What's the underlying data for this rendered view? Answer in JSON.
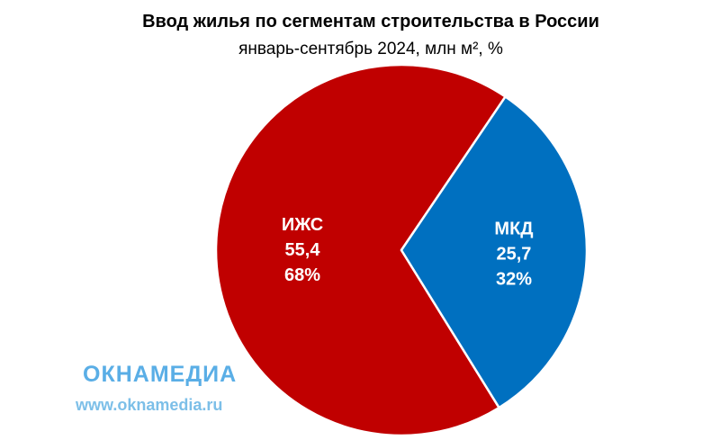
{
  "chart_data": {
    "type": "pie",
    "title": "Ввод жилья по сегментам строительства в России",
    "subtitle": "январь-сентябрь 2024, млн м², %",
    "categories": [
      "ИЖС",
      "МКД"
    ],
    "values": [
      55.4,
      25.7
    ],
    "value_labels": [
      "55,4",
      "25,7"
    ],
    "percents": [
      68,
      32
    ],
    "percent_labels": [
      "68%",
      "32%"
    ],
    "colors": [
      "#c00000",
      "#0070c0"
    ]
  },
  "watermark": {
    "logo": "ОКНАМЕДИА",
    "url": "www.oknamedia.ru"
  }
}
